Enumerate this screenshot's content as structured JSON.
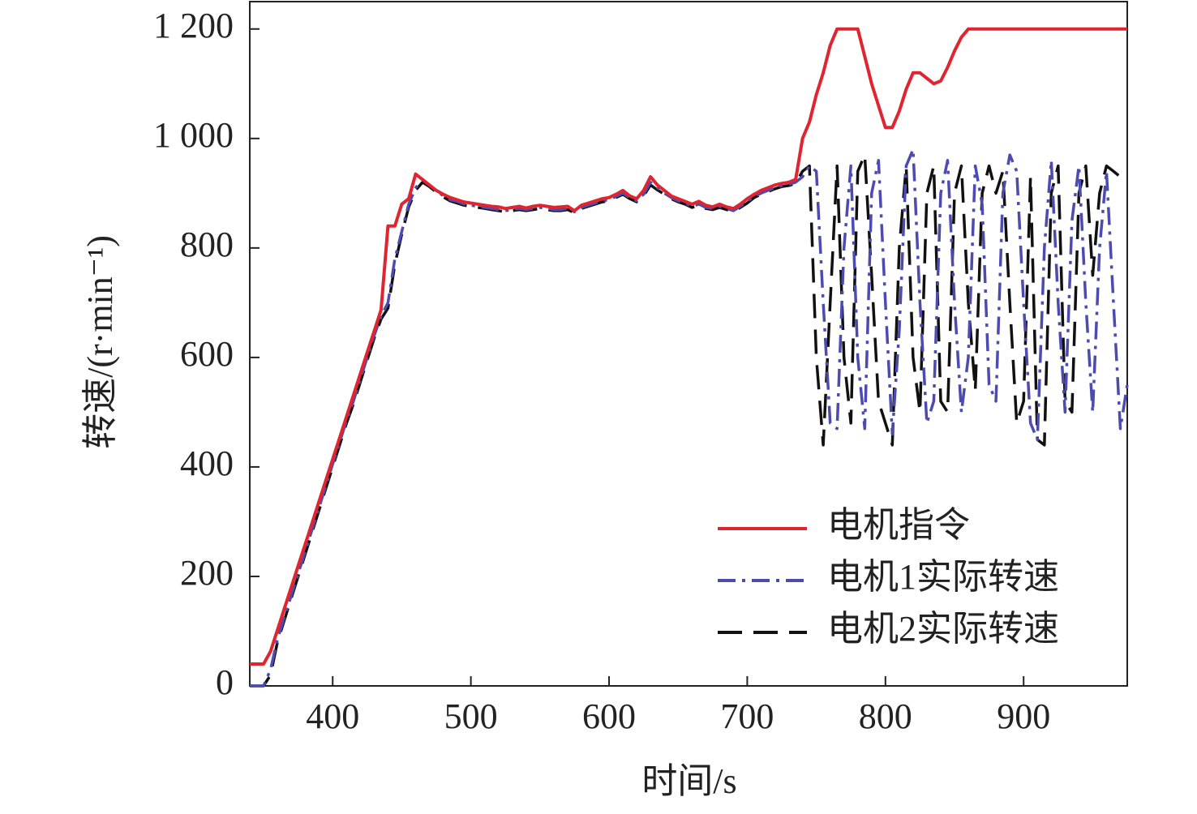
{
  "chart_data": {
    "type": "line",
    "xlabel": "时间/s",
    "ylabel": "转速/(r·min⁻¹)",
    "x": [
      340,
      345,
      350,
      355,
      360,
      365,
      370,
      375,
      380,
      385,
      390,
      395,
      400,
      405,
      410,
      415,
      420,
      425,
      430,
      435,
      440,
      445,
      450,
      455,
      460,
      465,
      470,
      475,
      480,
      485,
      490,
      495,
      500,
      505,
      510,
      515,
      520,
      525,
      530,
      535,
      540,
      545,
      550,
      555,
      560,
      565,
      570,
      575,
      580,
      585,
      590,
      595,
      600,
      605,
      610,
      615,
      620,
      625,
      630,
      635,
      640,
      645,
      650,
      655,
      660,
      665,
      670,
      675,
      680,
      685,
      690,
      695,
      700,
      705,
      710,
      715,
      720,
      725,
      730,
      735,
      740,
      745,
      750,
      755,
      760,
      765,
      770,
      775,
      780,
      785,
      790,
      795,
      800,
      805,
      810,
      815,
      820,
      825,
      830,
      835,
      840,
      845,
      850,
      855,
      860,
      865,
      870,
      875,
      880,
      885,
      890,
      895,
      900,
      905,
      910,
      915,
      920,
      925,
      930,
      935,
      940,
      945,
      950,
      955,
      960,
      965,
      970,
      975
    ],
    "series": [
      {
        "name": "电机指令",
        "color": "#e02430",
        "linestyle": "solid",
        "values": [
          40,
          40,
          40,
          63,
          102,
          141,
          180,
          219,
          258,
          297,
          336,
          375,
          414,
          453,
          492,
          531,
          570,
          609,
          648,
          687,
          840,
          840,
          880,
          890,
          935,
          925,
          915,
          905,
          898,
          892,
          888,
          884,
          882,
          880,
          878,
          876,
          875,
          872,
          874,
          876,
          873,
          876,
          878,
          876,
          874,
          875,
          876,
          868,
          878,
          882,
          886,
          890,
          892,
          898,
          905,
          895,
          890,
          905,
          930,
          915,
          905,
          895,
          890,
          885,
          880,
          885,
          878,
          875,
          880,
          875,
          872,
          880,
          890,
          898,
          905,
          910,
          915,
          918,
          920,
          925,
          1000,
          1030,
          1080,
          1120,
          1170,
          1200,
          1200,
          1200,
          1200,
          1150,
          1100,
          1060,
          1020,
          1020,
          1050,
          1090,
          1120,
          1120,
          1110,
          1100,
          1105,
          1130,
          1160,
          1185,
          1200,
          1200,
          1200,
          1200,
          1200,
          1200,
          1200,
          1200,
          1200,
          1200,
          1200,
          1200,
          1200,
          1200,
          1200,
          1200,
          1200,
          1200,
          1200,
          1200,
          1200,
          1200,
          1200,
          1200
        ]
      },
      {
        "name": "电机1实际转速",
        "color": "#4c4cb0",
        "linestyle": "dashdot",
        "values": [
          0,
          0,
          0,
          30,
          85,
          125,
          165,
          205,
          245,
          285,
          325,
          365,
          405,
          445,
          485,
          520,
          560,
          600,
          640,
          675,
          700,
          780,
          830,
          880,
          910,
          925,
          915,
          905,
          895,
          888,
          885,
          880,
          878,
          876,
          874,
          872,
          870,
          868,
          870,
          872,
          870,
          872,
          874,
          872,
          870,
          870,
          872,
          866,
          874,
          878,
          882,
          886,
          888,
          894,
          900,
          892,
          886,
          898,
          920,
          910,
          900,
          892,
          886,
          882,
          876,
          880,
          874,
          872,
          876,
          872,
          868,
          876,
          885,
          894,
          900,
          905,
          910,
          914,
          916,
          920,
          930,
          950,
          940,
          700,
          480,
          470,
          800,
          950,
          600,
          470,
          900,
          960,
          700,
          460,
          650,
          950,
          980,
          700,
          480,
          520,
          900,
          960,
          700,
          500,
          600,
          950,
          880,
          550,
          520,
          900,
          970,
          940,
          700,
          480,
          450,
          800,
          960,
          700,
          500,
          850,
          950,
          700,
          500,
          800,
          940,
          700,
          470,
          550
        ]
      },
      {
        "name": "电机2实际转速",
        "color": "#111111",
        "linestyle": "dashed",
        "values": [
          0,
          0,
          0,
          20,
          80,
          120,
          160,
          200,
          240,
          280,
          320,
          360,
          400,
          440,
          480,
          515,
          555,
          595,
          635,
          670,
          690,
          770,
          825,
          875,
          905,
          920,
          912,
          902,
          893,
          886,
          882,
          878,
          876,
          874,
          872,
          870,
          868,
          866,
          868,
          870,
          868,
          870,
          872,
          870,
          868,
          868,
          870,
          864,
          872,
          876,
          880,
          884,
          886,
          892,
          898,
          890,
          884,
          895,
          915,
          906,
          898,
          890,
          884,
          880,
          874,
          878,
          872,
          870,
          874,
          870,
          866,
          874,
          882,
          892,
          898,
          903,
          908,
          912,
          914,
          918,
          940,
          950,
          600,
          440,
          700,
          950,
          600,
          480,
          940,
          970,
          750,
          520,
          480,
          440,
          800,
          950,
          600,
          500,
          900,
          950,
          520,
          500,
          900,
          950,
          700,
          540,
          900,
          950,
          900,
          940,
          700,
          480,
          520,
          930,
          450,
          440,
          900,
          950,
          520,
          500,
          900,
          950,
          750,
          900,
          950,
          940,
          930,
          920
        ]
      }
    ],
    "xlim": [
      340,
      975
    ],
    "ylim": [
      0,
      1250
    ],
    "xticks": [
      400,
      500,
      600,
      700,
      800,
      900
    ],
    "yticks": [
      0,
      200,
      400,
      600,
      800,
      {
        "value": 1000,
        "label": "1 000"
      },
      {
        "value": 1200,
        "label": "1 200"
      }
    ],
    "grid": false,
    "legend": "lower right"
  }
}
